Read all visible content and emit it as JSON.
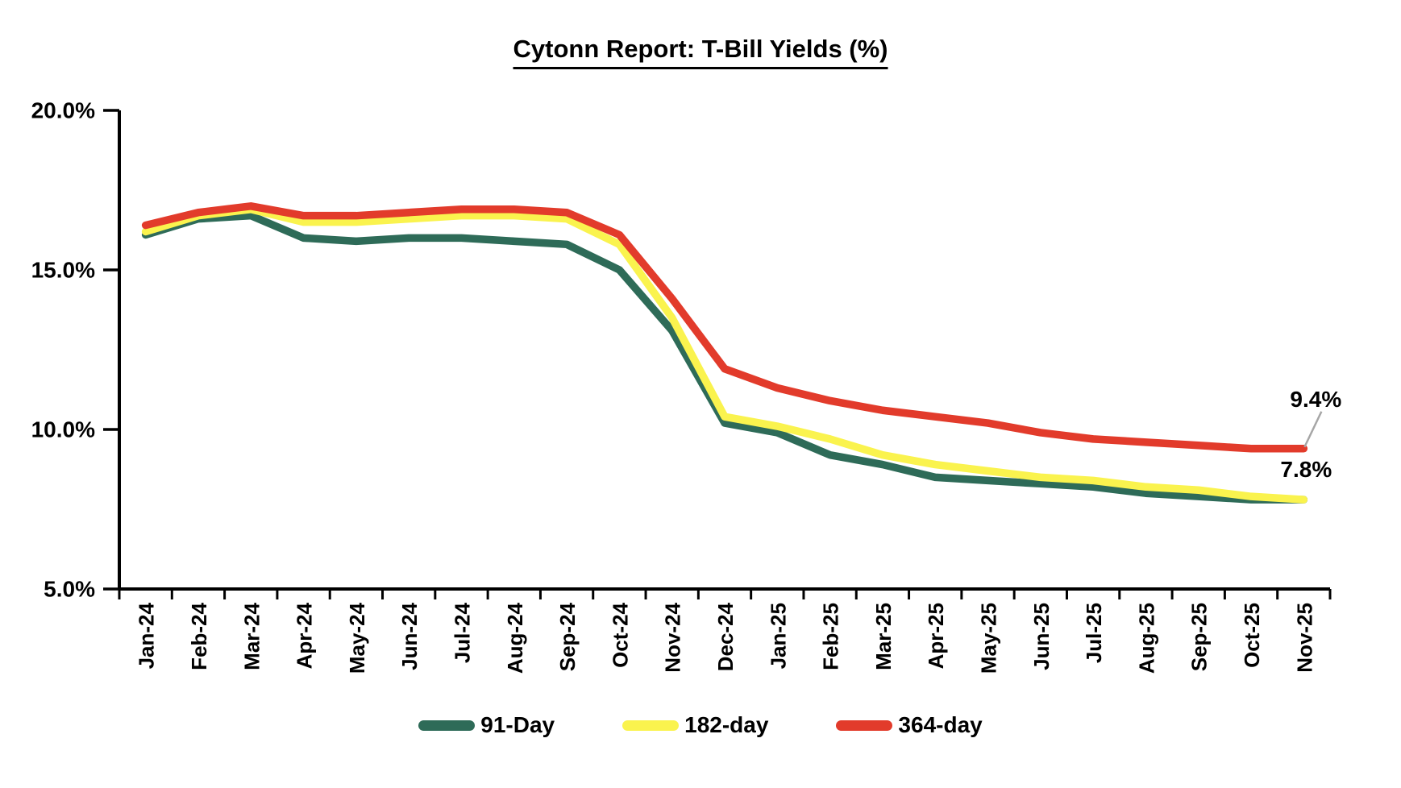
{
  "title": "Cytonn Report: T-Bill Yields (%)",
  "chart_data": {
    "type": "line",
    "title": "Cytonn Report: T-Bill Yields (%)",
    "categories": [
      "Jan-24",
      "Feb-24",
      "Mar-24",
      "Apr-24",
      "May-24",
      "Jun-24",
      "Jul-24",
      "Aug-24",
      "Sep-24",
      "Oct-24",
      "Nov-24",
      "Dec-24",
      "Jan-25",
      "Feb-25",
      "Mar-25",
      "Apr-25",
      "May-25",
      "Jun-25",
      "Jul-25",
      "Aug-25",
      "Sep-25",
      "Oct-25",
      "Nov-25"
    ],
    "series": [
      {
        "name": "91-Day",
        "color": "#2E6B58",
        "values": [
          16.1,
          16.6,
          16.7,
          16.0,
          15.9,
          16.0,
          16.0,
          15.9,
          15.8,
          15.0,
          13.1,
          10.2,
          9.9,
          9.2,
          8.9,
          8.5,
          8.4,
          8.3,
          8.2,
          8.0,
          7.9,
          7.8,
          7.8
        ]
      },
      {
        "name": "182-day",
        "color": "#FAF34E",
        "values": [
          16.2,
          16.7,
          16.9,
          16.5,
          16.5,
          16.6,
          16.7,
          16.7,
          16.6,
          15.8,
          13.5,
          10.4,
          10.1,
          9.7,
          9.2,
          8.9,
          8.7,
          8.5,
          8.4,
          8.2,
          8.1,
          7.9,
          7.8
        ]
      },
      {
        "name": "364-day",
        "color": "#E23B2B",
        "values": [
          16.4,
          16.8,
          17.0,
          16.7,
          16.7,
          16.8,
          16.9,
          16.9,
          16.8,
          16.1,
          14.1,
          11.9,
          11.3,
          10.9,
          10.6,
          10.4,
          10.2,
          9.9,
          9.7,
          9.6,
          9.5,
          9.4,
          9.4
        ]
      }
    ],
    "xlabel": "",
    "ylabel": "",
    "ylim": [
      5,
      20
    ],
    "y_ticks": [
      {
        "value": 20,
        "label": "20.0%"
      },
      {
        "value": 15,
        "label": "15.0%"
      },
      {
        "value": 10,
        "label": "10.0%"
      },
      {
        "value": 5,
        "label": "5.0%"
      }
    ],
    "grid": "off",
    "legend_position": "bottom",
    "axis_color": "#000000",
    "text_color": "#000000",
    "annotations": [
      {
        "text": "9.4%",
        "series": "364-day",
        "category": "Nov-25",
        "value": 9.4,
        "leader_line": true
      },
      {
        "text": "7.8%",
        "series": "182-day",
        "category": "Nov-25",
        "value": 7.8,
        "leader_line": false
      }
    ]
  },
  "legend": {
    "items": [
      {
        "label": "91-Day"
      },
      {
        "label": "182-day"
      },
      {
        "label": "364-day"
      }
    ]
  }
}
